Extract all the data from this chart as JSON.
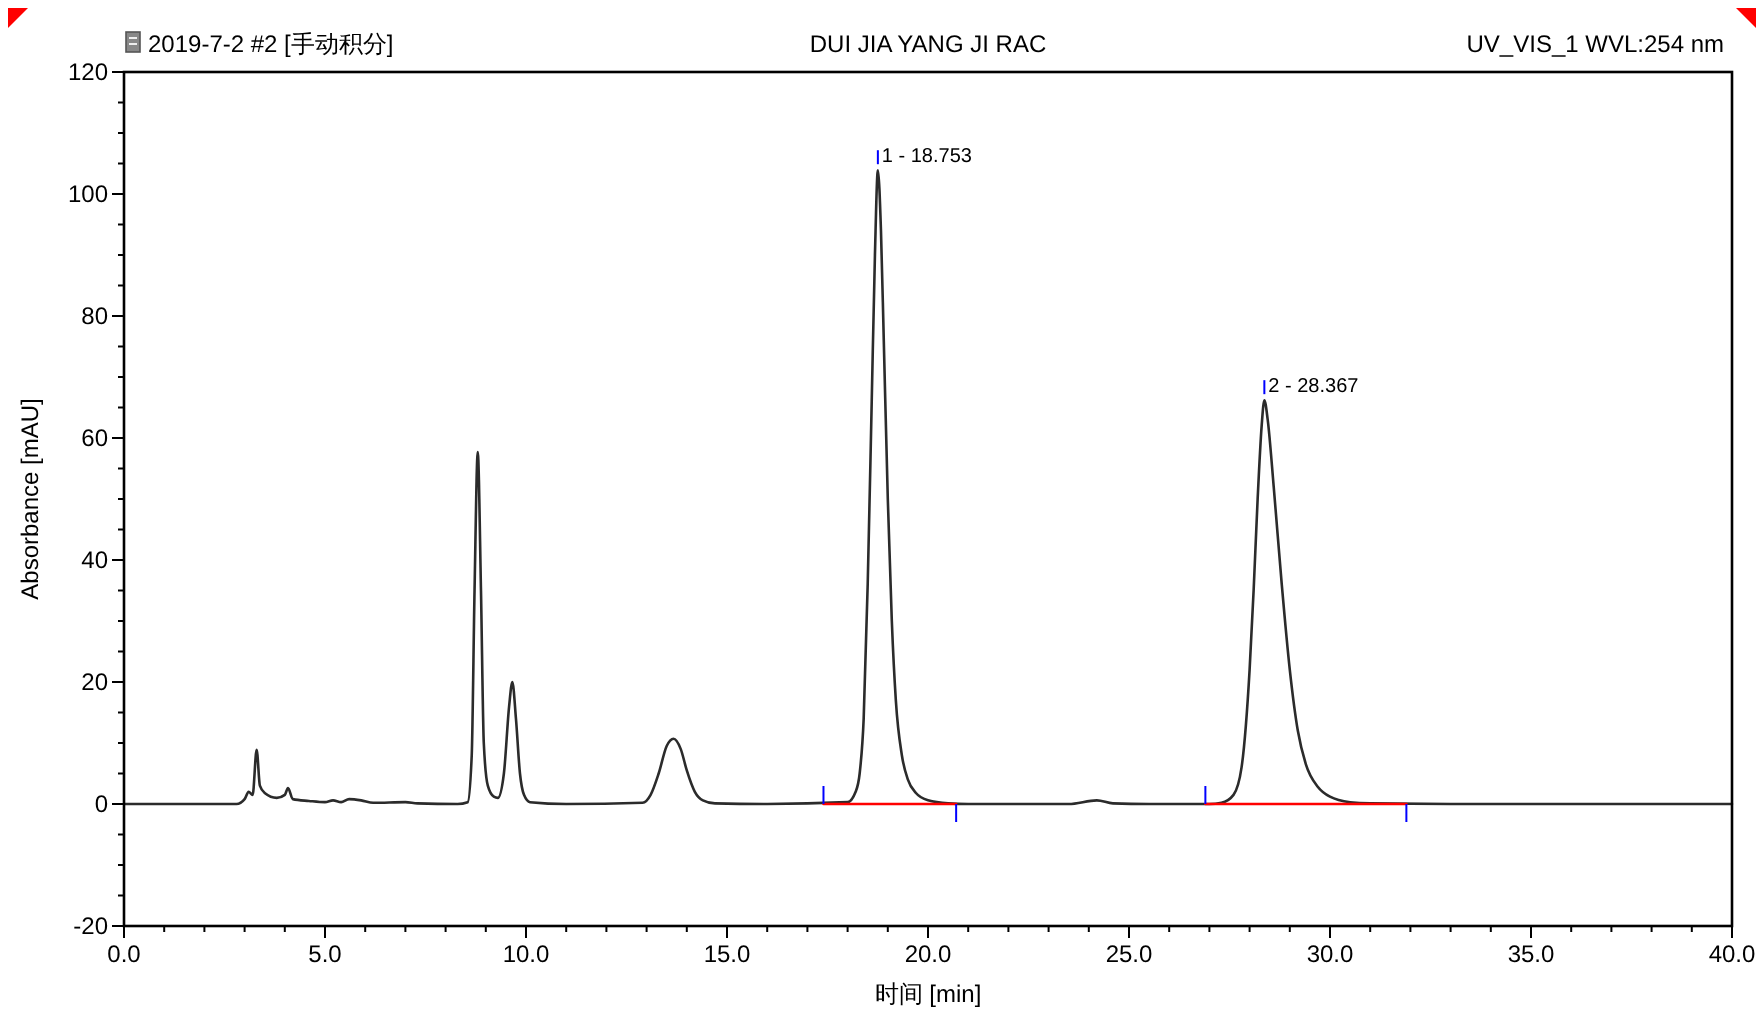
{
  "chart_data": {
    "type": "line",
    "title": "DUI JIA YANG JI RAC",
    "subtitle": "2019-7-2 #2 [手动积分]",
    "xlabel": "时间 [min]",
    "ylabel": "Absorbance [mAU]",
    "xlim": [
      0,
      40
    ],
    "ylim": [
      -20,
      120
    ],
    "xticks": [
      {
        "value": 0,
        "label": "0.0"
      },
      {
        "value": 5,
        "label": "5.0"
      },
      {
        "value": 10,
        "label": "10.0"
      },
      {
        "value": 15,
        "label": "15.0"
      },
      {
        "value": 20,
        "label": "20.0"
      },
      {
        "value": 25,
        "label": "25.0"
      },
      {
        "value": 30,
        "label": "30.0"
      },
      {
        "value": 35,
        "label": "35.0"
      },
      {
        "value": 40,
        "label": "40.0"
      }
    ],
    "yticks": [
      -20,
      0,
      20,
      40,
      60,
      80,
      100,
      120
    ],
    "grid": false,
    "marker": "none",
    "line_style": "solid",
    "annotations": [
      {
        "text": "1 - 18.753",
        "x": 18.753,
        "y": 103.9
      },
      {
        "text": "2 - 28.367",
        "x": 28.367,
        "y": 66.2
      },
      "UV_VIS_1 WVL:254 nm"
    ],
    "series": [
      {
        "color": "#2b2b2b",
        "x": [
          0,
          2.8,
          3.0,
          3.1,
          3.2,
          3.3,
          3.38,
          3.5,
          3.8,
          4.0,
          4.08,
          4.2,
          4.6,
          5.0,
          5.2,
          5.4,
          5.6,
          5.9,
          6.2,
          7.0,
          7.3,
          8.3,
          8.55,
          8.65,
          8.72,
          8.8,
          8.88,
          8.95,
          9.05,
          9.2,
          9.3,
          9.45,
          9.58,
          9.66,
          9.75,
          9.85,
          9.95,
          10.1,
          11,
          12.9,
          13.1,
          13.3,
          13.5,
          13.67,
          13.85,
          14.0,
          14.2,
          14.4,
          14.7,
          16,
          18.0,
          18.2,
          18.3,
          18.4,
          18.5,
          18.6,
          18.68,
          18.753,
          18.83,
          18.9,
          19.0,
          19.1,
          19.2,
          19.35,
          19.5,
          19.7,
          20.0,
          20.5,
          21,
          23.5,
          24.2,
          24.6,
          25.5,
          27.0,
          27.3,
          27.6,
          27.8,
          28.0,
          28.1,
          28.2,
          28.3,
          28.367,
          28.45,
          28.6,
          28.8,
          29.0,
          29.2,
          29.4,
          29.7,
          30.0,
          30.5,
          31.0,
          33,
          35,
          40
        ],
        "values": [
          0,
          0,
          0.8,
          2,
          1.5,
          8.9,
          3,
          1.8,
          1.0,
          1.5,
          2.6,
          0.8,
          0.5,
          0.3,
          0.6,
          0.3,
          0.8,
          0.6,
          0.2,
          0.3,
          0.1,
          0,
          0.3,
          8,
          35,
          57.7,
          35,
          10,
          3,
          1.2,
          1.0,
          5,
          16,
          20,
          14,
          5,
          1.5,
          0.3,
          0,
          0.2,
          1.5,
          5,
          9.5,
          10.7,
          9,
          5.5,
          2,
          0.6,
          0.1,
          0,
          0.3,
          2,
          5,
          14,
          36,
          66,
          90,
          103.9,
          94,
          76,
          50,
          30,
          17,
          8,
          4,
          1.8,
          0.6,
          0.1,
          0,
          0,
          0.6,
          0.1,
          0,
          0,
          0.2,
          1.5,
          6,
          22,
          35,
          50,
          62,
          66.2,
          63,
          52,
          36,
          22,
          12,
          6.5,
          2.8,
          1.2,
          0.3,
          0.1,
          0,
          0,
          0
        ]
      },
      {
        "color": "#ff0000",
        "x": [
          17.4,
          20.7
        ],
        "values": [
          0,
          0
        ]
      },
      {
        "color": "#ff0000",
        "x": [
          26.9,
          31.9
        ],
        "values": [
          0,
          0
        ]
      }
    ]
  }
}
